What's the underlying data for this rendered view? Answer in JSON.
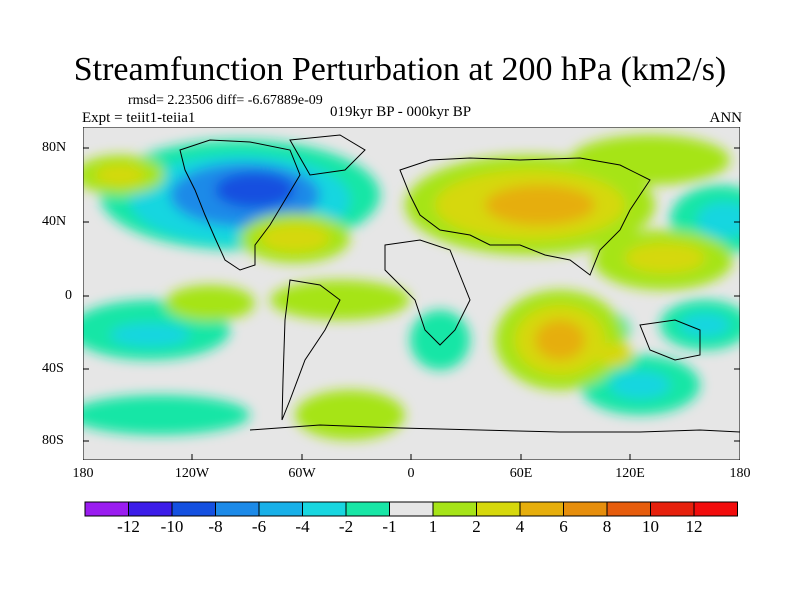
{
  "header": {
    "title": "Streamfunction Perturbation at 200 hPa (km2/s)",
    "stats": "rmsd= 2.23506 diff= -6.67889e-09",
    "experiment": "Expt = teiit1-teiia1",
    "period": "019kyr BP - 000kyr BP",
    "season": "ANN"
  },
  "axes": {
    "lat_labels": [
      "80N",
      "40N",
      "0",
      "40S",
      "80S"
    ],
    "lon_labels": [
      "180",
      "120W",
      "60W",
      "0",
      "60E",
      "120E",
      "180"
    ]
  },
  "colorbar": {
    "labels": [
      "-12",
      "-10",
      "-8",
      "-6",
      "-4",
      "-2",
      "-1",
      "1",
      "2",
      "4",
      "6",
      "8",
      "10",
      "12"
    ],
    "colors": [
      "#9a1cf0",
      "#3c1ce8",
      "#1450e0",
      "#1c8ae8",
      "#18b0e8",
      "#18d6e0",
      "#18e6a6",
      "#e6e6e6",
      "#a6e418",
      "#d6d80c",
      "#e6ae0c",
      "#e68e0c",
      "#e65c0c",
      "#e6200c",
      "#f20c0c"
    ]
  }
}
